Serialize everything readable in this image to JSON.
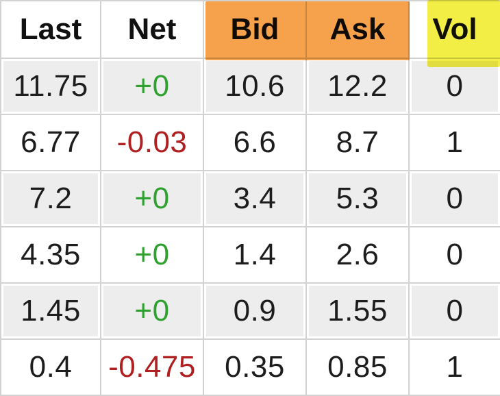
{
  "table": {
    "columns": [
      {
        "label": "Last",
        "highlight": "none"
      },
      {
        "label": "Net",
        "highlight": "none"
      },
      {
        "label": "Bid",
        "highlight": "orange"
      },
      {
        "label": "Ask",
        "highlight": "orange"
      },
      {
        "label": "Vol",
        "highlight": "yellow"
      }
    ],
    "rows": [
      {
        "last": "11.75",
        "net": "+0",
        "net_change": "positive",
        "bid": "10.6",
        "ask": "12.2",
        "vol": "0"
      },
      {
        "last": "6.77",
        "net": "-0.03",
        "net_change": "negative",
        "bid": "6.6",
        "ask": "8.7",
        "vol": "1"
      },
      {
        "last": "7.2",
        "net": "+0",
        "net_change": "positive",
        "bid": "3.4",
        "ask": "5.3",
        "vol": "0"
      },
      {
        "last": "4.35",
        "net": "+0",
        "net_change": "positive",
        "bid": "1.4",
        "ask": "2.6",
        "vol": "0"
      },
      {
        "last": "1.45",
        "net": "+0",
        "net_change": "positive",
        "bid": "0.9",
        "ask": "1.55",
        "vol": "0"
      },
      {
        "last": "0.4",
        "net": "-0.475",
        "net_change": "negative",
        "bid": "0.35",
        "ask": "0.85",
        "vol": "1"
      }
    ]
  },
  "colors": {
    "positive": "#2ea12e",
    "negative": "#b02020",
    "bid_ask_highlight": "#f6a14c",
    "vol_highlight": "#f3ee45",
    "row_alt_fill": "#ededed",
    "grid_line": "#d2d2d2",
    "header_text": "#111111",
    "number_text": "#1d1d1d"
  }
}
